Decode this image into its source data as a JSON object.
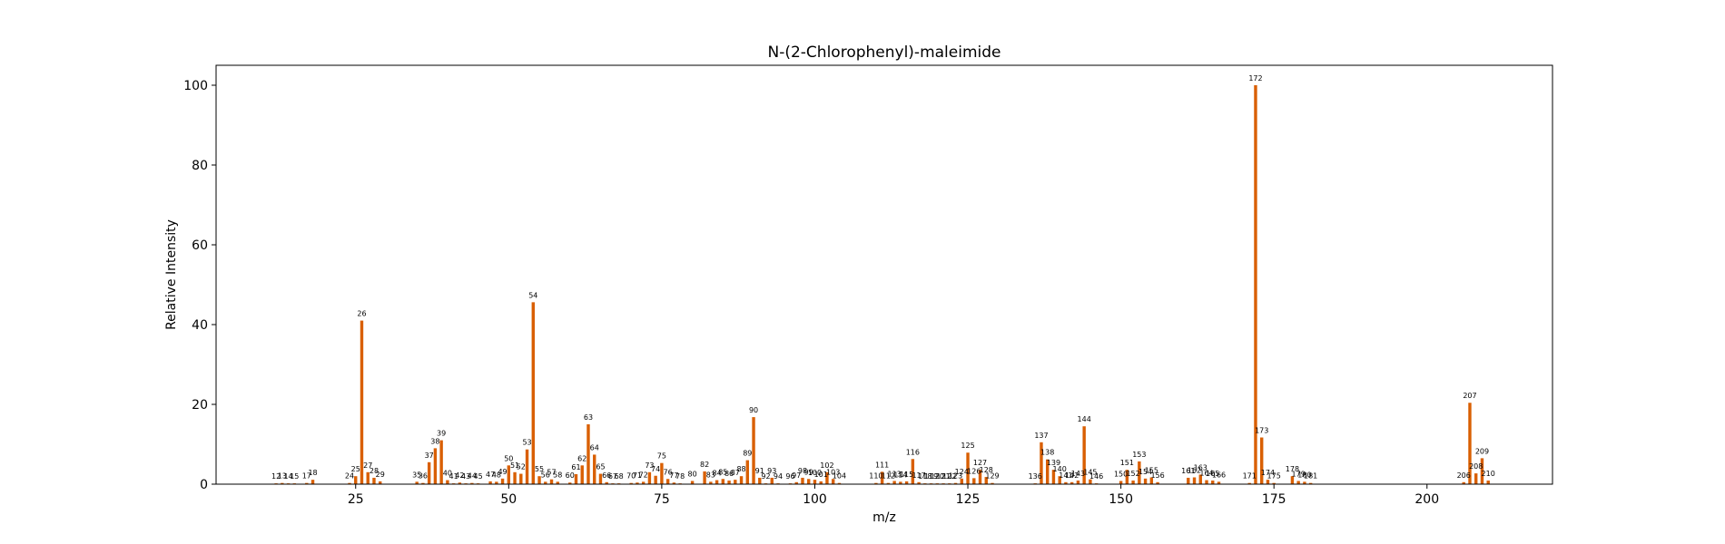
{
  "chart_data": {
    "type": "bar",
    "title": "N-(2-Chlorophenyl)-maleimide",
    "xlabel": "m/z",
    "ylabel": "Relative Intensity",
    "xlim": [
      2.2,
      220.5
    ],
    "ylim": [
      0,
      105
    ],
    "xticks": [
      25,
      50,
      75,
      100,
      125,
      150,
      175,
      200
    ],
    "yticks": [
      0,
      20,
      40,
      60,
      80,
      100
    ],
    "bar_color": "#d95f02",
    "grid": false,
    "legend": "none",
    "x": [
      12,
      13,
      14,
      15,
      17,
      18,
      24,
      25,
      26,
      27,
      28,
      29,
      35,
      36,
      37,
      38,
      39,
      40,
      41,
      42,
      43,
      44,
      45,
      47,
      48,
      49,
      50,
      51,
      52,
      53,
      54,
      55,
      56,
      57,
      58,
      60,
      61,
      62,
      63,
      64,
      65,
      66,
      67,
      68,
      70,
      71,
      72,
      73,
      74,
      75,
      76,
      77,
      78,
      80,
      82,
      83,
      84,
      85,
      86,
      87,
      88,
      89,
      90,
      91,
      92,
      93,
      94,
      96,
      97,
      98,
      99,
      100,
      101,
      102,
      103,
      104,
      110,
      111,
      112,
      113,
      114,
      115,
      116,
      117,
      118,
      119,
      120,
      121,
      122,
      123,
      124,
      125,
      126,
      127,
      128,
      129,
      136,
      137,
      138,
      139,
      140,
      141,
      142,
      143,
      144,
      145,
      146,
      150,
      151,
      152,
      153,
      154,
      155,
      156,
      161,
      162,
      163,
      164,
      165,
      166,
      171,
      172,
      173,
      174,
      175,
      178,
      179,
      180,
      181,
      206,
      207,
      208,
      209,
      210
    ],
    "values": [
      0.2,
      0.3,
      0.2,
      0.2,
      0.3,
      1.1,
      0.3,
      2.0,
      41.0,
      3.0,
      1.6,
      0.7,
      0.6,
      0.3,
      5.5,
      9.0,
      11.0,
      1.0,
      0.2,
      0.4,
      0.2,
      0.3,
      0.2,
      0.7,
      0.6,
      1.4,
      4.7,
      3.0,
      2.6,
      8.7,
      45.6,
      2.0,
      0.6,
      1.2,
      0.6,
      0.4,
      2.5,
      4.7,
      15.0,
      7.4,
      2.6,
      0.5,
      0.2,
      0.2,
      0.3,
      0.4,
      0.6,
      3.0,
      2.1,
      5.3,
      1.3,
      0.4,
      0.2,
      0.8,
      3.2,
      0.6,
      1.0,
      1.3,
      0.9,
      1.1,
      2.0,
      6.0,
      16.8,
      1.6,
      0.2,
      1.6,
      0.2,
      0.2,
      0.5,
      1.6,
      1.3,
      1.1,
      0.7,
      3.0,
      1.3,
      0.3,
      0.3,
      3.1,
      0.3,
      0.8,
      0.6,
      0.7,
      6.3,
      0.5,
      0.2,
      0.2,
      0.2,
      0.2,
      0.2,
      0.3,
      1.4,
      7.9,
      1.5,
      3.6,
      1.8,
      0.3,
      0.2,
      10.5,
      6.2,
      3.6,
      2.0,
      0.5,
      0.5,
      0.9,
      14.5,
      1.2,
      0.2,
      0.8,
      3.6,
      0.9,
      5.7,
      1.4,
      1.7,
      0.5,
      1.6,
      1.7,
      2.4,
      1.0,
      0.9,
      0.6,
      0.3,
      100.0,
      11.7,
      1.1,
      0.3,
      2.0,
      0.8,
      0.6,
      0.3,
      0.5,
      20.4,
      2.7,
      6.5,
      0.9
    ],
    "data_labels": [
      "12",
      "13",
      "14",
      "15",
      "17",
      "18",
      "24",
      "25",
      "26",
      "27",
      "28",
      "29",
      "35",
      "36",
      "37",
      "38",
      "39",
      "40",
      "41",
      "42",
      "43",
      "44",
      "45",
      "47",
      "48",
      "49",
      "50",
      "51",
      "52",
      "53",
      "54",
      "55",
      "56",
      "57",
      "58",
      "60",
      "61",
      "62",
      "63",
      "64",
      "65",
      "66",
      "67",
      "68",
      "70",
      "71",
      "72",
      "73",
      "74",
      "75",
      "76",
      "77",
      "78",
      "80",
      "82",
      "83",
      "84",
      "85",
      "86",
      "87",
      "88",
      "89",
      "90",
      "91",
      "92",
      "93",
      "94",
      "96",
      "97",
      "98",
      "99",
      "100",
      "101",
      "102",
      "103",
      "104",
      "110",
      "111",
      "112",
      "113",
      "114",
      "115",
      "116",
      "117",
      "118",
      "119",
      "120",
      "121",
      "122",
      "123",
      "124",
      "125",
      "126",
      "127",
      "128",
      "129",
      "136",
      "137",
      "138",
      "139",
      "140",
      "141",
      "142",
      "143",
      "144",
      "145",
      "146",
      "150",
      "151",
      "152",
      "153",
      "154",
      "155",
      "156",
      "161",
      "162",
      "163",
      "164",
      "165",
      "166",
      "171",
      "172",
      "173",
      "174",
      "175",
      "178",
      "179",
      "180",
      "181",
      "206",
      "207",
      "208",
      "209",
      "210"
    ]
  }
}
